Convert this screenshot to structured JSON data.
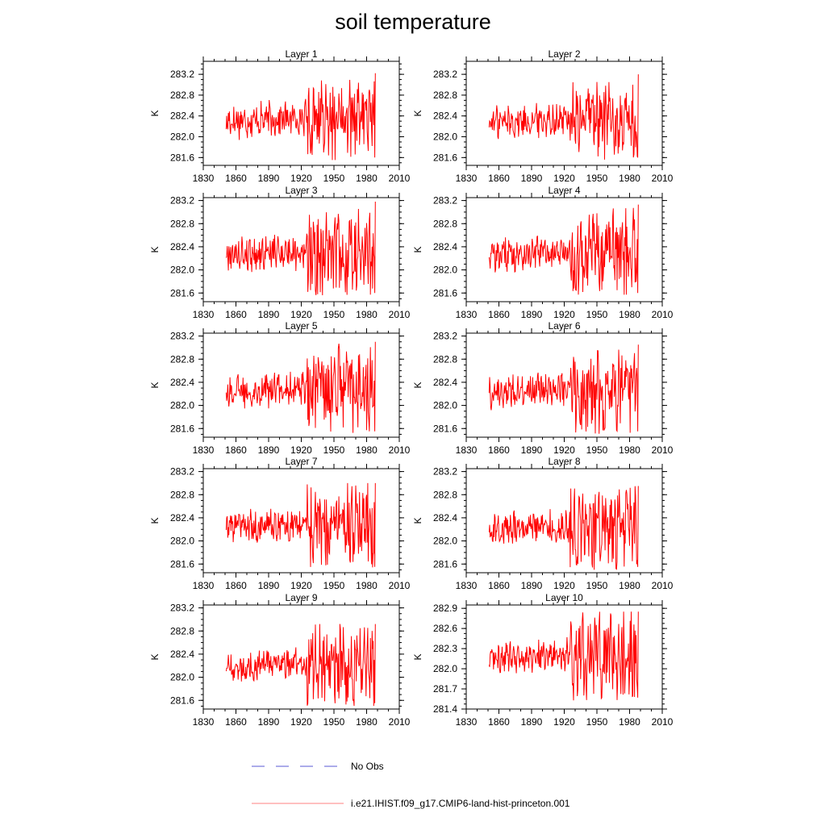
{
  "title": "soil temperature",
  "legend": {
    "entries": [
      {
        "label": "No Obs",
        "color": "#5a5ad6",
        "style": "dashed"
      },
      {
        "label": "i.e21.IHIST.f09_g17.CMIP6-land-hist-princeton.001",
        "color": "#ff8080",
        "style": "solid"
      }
    ]
  },
  "chart_data": [
    {
      "type": "line",
      "title": "Layer 1",
      "ylabel": "K",
      "xlim": [
        1830,
        2010
      ],
      "ylim": [
        281.45,
        283.45
      ],
      "xticks": [
        1830,
        1860,
        1890,
        1920,
        1950,
        1980,
        2010
      ],
      "yticks": [
        281.6,
        282.0,
        282.4,
        282.8,
        283.2
      ],
      "series": [
        {
          "color": "#ff0000",
          "x_start": 1851,
          "x_end": 1988,
          "mean": 282.3,
          "amp": 0.28,
          "amp_late": 0.55,
          "end_value": 283.22,
          "min": 281.55,
          "max": 283.22
        }
      ]
    },
    {
      "type": "line",
      "title": "Layer 2",
      "ylabel": "K",
      "xlim": [
        1830,
        2010
      ],
      "ylim": [
        281.45,
        283.45
      ],
      "xticks": [
        1830,
        1860,
        1890,
        1920,
        1950,
        1980,
        2010
      ],
      "yticks": [
        281.6,
        282.0,
        282.4,
        282.8,
        283.2
      ],
      "series": [
        {
          "color": "#ff0000",
          "x_start": 1851,
          "x_end": 1988,
          "mean": 282.28,
          "amp": 0.26,
          "amp_late": 0.55,
          "end_value": 283.2,
          "min": 281.55,
          "max": 283.2
        }
      ]
    },
    {
      "type": "line",
      "title": "Layer 3",
      "ylabel": "K",
      "xlim": [
        1830,
        2010
      ],
      "ylim": [
        281.45,
        283.25
      ],
      "xticks": [
        1830,
        1860,
        1890,
        1920,
        1950,
        1980,
        2010
      ],
      "yticks": [
        281.6,
        282.0,
        282.4,
        282.8,
        283.2
      ],
      "series": [
        {
          "color": "#ff0000",
          "x_start": 1851,
          "x_end": 1988,
          "mean": 282.27,
          "amp": 0.26,
          "amp_late": 0.55,
          "end_value": 283.18,
          "min": 281.55,
          "max": 283.18
        }
      ]
    },
    {
      "type": "line",
      "title": "Layer 4",
      "ylabel": "K",
      "xlim": [
        1830,
        2010
      ],
      "ylim": [
        281.45,
        283.25
      ],
      "xticks": [
        1830,
        1860,
        1890,
        1920,
        1950,
        1980,
        2010
      ],
      "yticks": [
        281.6,
        282.0,
        282.4,
        282.8,
        283.2
      ],
      "series": [
        {
          "color": "#ff0000",
          "x_start": 1851,
          "x_end": 1988,
          "mean": 282.25,
          "amp": 0.25,
          "amp_late": 0.55,
          "end_value": 283.13,
          "min": 281.55,
          "max": 283.13
        }
      ]
    },
    {
      "type": "line",
      "title": "Layer 5",
      "ylabel": "K",
      "xlim": [
        1830,
        2010
      ],
      "ylim": [
        281.45,
        283.25
      ],
      "xticks": [
        1830,
        1860,
        1890,
        1920,
        1950,
        1980,
        2010
      ],
      "yticks": [
        281.6,
        282.0,
        282.4,
        282.8,
        283.2
      ],
      "series": [
        {
          "color": "#ff0000",
          "x_start": 1851,
          "x_end": 1988,
          "mean": 282.24,
          "amp": 0.25,
          "amp_late": 0.55,
          "end_value": 283.1,
          "min": 281.5,
          "max": 283.1
        }
      ]
    },
    {
      "type": "line",
      "title": "Layer 6",
      "ylabel": "K",
      "xlim": [
        1830,
        2010
      ],
      "ylim": [
        281.45,
        283.25
      ],
      "xticks": [
        1830,
        1860,
        1890,
        1920,
        1950,
        1980,
        2010
      ],
      "yticks": [
        281.6,
        282.0,
        282.4,
        282.8,
        283.2
      ],
      "series": [
        {
          "color": "#ff0000",
          "x_start": 1851,
          "x_end": 1988,
          "mean": 282.23,
          "amp": 0.24,
          "amp_late": 0.55,
          "end_value": 283.05,
          "min": 281.5,
          "max": 283.05
        }
      ]
    },
    {
      "type": "line",
      "title": "Layer 7",
      "ylabel": "K",
      "xlim": [
        1830,
        2010
      ],
      "ylim": [
        281.45,
        283.25
      ],
      "xticks": [
        1830,
        1860,
        1890,
        1920,
        1950,
        1980,
        2010
      ],
      "yticks": [
        281.6,
        282.0,
        282.4,
        282.8,
        283.2
      ],
      "series": [
        {
          "color": "#ff0000",
          "x_start": 1851,
          "x_end": 1988,
          "mean": 282.22,
          "amp": 0.24,
          "amp_late": 0.55,
          "end_value": 283.0,
          "min": 281.5,
          "max": 283.0
        }
      ]
    },
    {
      "type": "line",
      "title": "Layer 8",
      "ylabel": "K",
      "xlim": [
        1830,
        2010
      ],
      "ylim": [
        281.45,
        283.25
      ],
      "xticks": [
        1830,
        1860,
        1890,
        1920,
        1950,
        1980,
        2010
      ],
      "yticks": [
        281.6,
        282.0,
        282.4,
        282.8,
        283.2
      ],
      "series": [
        {
          "color": "#ff0000",
          "x_start": 1851,
          "x_end": 1988,
          "mean": 282.2,
          "amp": 0.23,
          "amp_late": 0.55,
          "end_value": 282.95,
          "min": 281.5,
          "max": 282.95
        }
      ]
    },
    {
      "type": "line",
      "title": "Layer 9",
      "ylabel": "K",
      "xlim": [
        1830,
        2010
      ],
      "ylim": [
        281.45,
        283.25
      ],
      "xticks": [
        1830,
        1860,
        1890,
        1920,
        1950,
        1980,
        2010
      ],
      "yticks": [
        281.6,
        282.0,
        282.4,
        282.8,
        283.2
      ],
      "series": [
        {
          "color": "#ff0000",
          "x_start": 1851,
          "x_end": 1988,
          "mean": 282.18,
          "amp": 0.22,
          "amp_late": 0.55,
          "end_value": 282.92,
          "min": 281.5,
          "max": 282.92
        }
      ]
    },
    {
      "type": "line",
      "title": "Layer 10",
      "ylabel": "K",
      "xlim": [
        1830,
        2010
      ],
      "ylim": [
        281.4,
        282.95
      ],
      "xticks": [
        1830,
        1860,
        1890,
        1920,
        1950,
        1980,
        2010
      ],
      "yticks": [
        281.4,
        281.7,
        282.0,
        282.3,
        282.6,
        282.9
      ],
      "series": [
        {
          "color": "#ff0000",
          "x_start": 1851,
          "x_end": 1988,
          "mean": 282.15,
          "amp": 0.2,
          "amp_late": 0.5,
          "end_value": 282.85,
          "min": 281.52,
          "max": 282.85
        }
      ]
    }
  ]
}
